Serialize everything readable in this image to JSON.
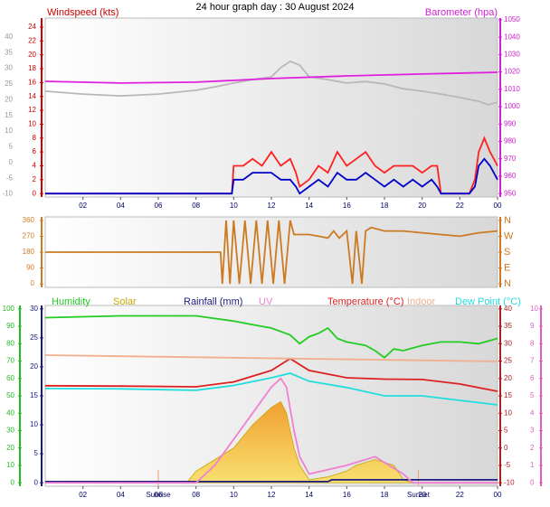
{
  "chart_data": [
    {
      "type": "line",
      "title": "24 hour graph day : 30 August 2024",
      "xlim": [
        0,
        24
      ],
      "xticks": [
        {
          "value": 2,
          "label": "02"
        },
        {
          "value": 4,
          "label": "04"
        },
        {
          "value": 6,
          "label": "06"
        },
        {
          "value": 8,
          "label": "08"
        },
        10,
        12,
        14,
        16,
        18,
        20,
        22,
        {
          "value": 24,
          "label": "00"
        }
      ],
      "axes": [
        {
          "color": "#999999",
          "lim": [
            -11,
            46
          ],
          "ticks": [
            -10,
            -5,
            0,
            5,
            10,
            15,
            20,
            25,
            30,
            35,
            40
          ]
        },
        {
          "label": "Windspeed (kts)",
          "color": "#cc0000",
          "lim": [
            -0.5,
            25.3
          ],
          "ticks": [
            0,
            2,
            4,
            6,
            8,
            10,
            12,
            14,
            16,
            18,
            20,
            22,
            24
          ]
        },
        {
          "label": "Barometer (hpa)",
          "color": "#d020d0",
          "lim": [
            948,
            1051
          ],
          "ticks": [
            950,
            960,
            970,
            980,
            990,
            1000,
            1010,
            1020,
            1030,
            1040,
            1050
          ]
        }
      ],
      "series": [
        {
          "color": "#b8b8b8",
          "axis": 0,
          "x": [
            0,
            2,
            4,
            6,
            8,
            9,
            10,
            11,
            12,
            12.5,
            13,
            13.5,
            14,
            15,
            16,
            17,
            18,
            19,
            20,
            21,
            22,
            23,
            23.5,
            24
          ],
          "values": [
            22.7,
            21.8,
            21.2,
            21.8,
            23,
            24.1,
            25.3,
            26.4,
            27.3,
            30.2,
            32.2,
            31,
            27.3,
            26.4,
            25.3,
            25.8,
            25,
            23.5,
            22.7,
            21.8,
            20.7,
            19.5,
            18.4,
            19.2
          ]
        },
        {
          "color": "#e020e0",
          "axis": 2,
          "x": [
            0,
            4,
            8,
            12,
            16,
            20,
            24
          ],
          "values": [
            1014.6,
            1013.6,
            1014.1,
            1016.2,
            1017.7,
            1018.8,
            1019.8
          ]
        },
        {
          "color": "#ff2020",
          "axis": 1,
          "x": [
            0,
            9.9,
            10,
            10.5,
            11,
            11.5,
            12,
            12.5,
            13,
            13.3,
            13.5,
            14,
            14.5,
            15,
            15.5,
            16,
            16.5,
            17,
            17.5,
            18,
            18.5,
            19,
            19.5,
            20,
            20.5,
            20.8,
            21,
            22.5,
            22.8,
            23,
            23.3,
            23.6,
            24
          ],
          "values": [
            0,
            0,
            4,
            4,
            5,
            4,
            6,
            4,
            5,
            3,
            1,
            2,
            4,
            3,
            6,
            4,
            5,
            6,
            4,
            3,
            4,
            4,
            4,
            3,
            4,
            4,
            0,
            0,
            2,
            6,
            8,
            6,
            4
          ]
        },
        {
          "color": "#0000cc",
          "axis": 1,
          "x": [
            0,
            9.9,
            10,
            10.5,
            11,
            11.5,
            12,
            12.5,
            13,
            13.3,
            13.5,
            14,
            14.5,
            15,
            15.5,
            16,
            16.5,
            17,
            17.5,
            18,
            18.5,
            19,
            19.5,
            20,
            20.5,
            20.8,
            21,
            22.5,
            22.8,
            23,
            23.3,
            23.6,
            24
          ],
          "values": [
            0,
            0,
            2,
            2,
            3,
            3,
            3,
            2,
            2,
            1,
            0,
            1,
            2,
            1,
            3,
            2,
            2,
            3,
            2,
            1,
            2,
            1,
            2,
            1,
            2,
            1,
            0,
            0,
            1,
            4,
            5,
            4,
            2
          ]
        }
      ]
    },
    {
      "type": "line",
      "xlim": [
        0,
        24
      ],
      "axes": [
        {
          "color": "#cc7a22",
          "lim": [
            -20,
            380
          ],
          "ticks": [
            0,
            90,
            180,
            270,
            360
          ]
        },
        {
          "color": "#cc7a22",
          "lim": [
            -20,
            380
          ],
          "ticks": [
            {
              "value": 0,
              "label": "N"
            },
            {
              "value": 90,
              "label": "E"
            },
            {
              "value": 180,
              "label": "S"
            },
            {
              "value": 270,
              "label": "W"
            },
            {
              "value": 360,
              "label": "N"
            }
          ]
        }
      ],
      "series": [
        {
          "color": "#cc7a22",
          "axis": 0,
          "x": [
            0,
            9.3,
            9.4,
            9.6,
            9.8,
            10,
            10.3,
            10.6,
            10.9,
            11.2,
            11.5,
            11.8,
            12.1,
            12.4,
            12.7,
            13,
            13.2,
            14,
            14.5,
            15,
            15.3,
            15.6,
            16,
            16.3,
            16.5,
            16.8,
            17,
            17.3,
            18,
            19,
            20,
            21,
            22,
            23,
            24
          ],
          "values": [
            180,
            180,
            0,
            360,
            0,
            360,
            0,
            360,
            0,
            360,
            0,
            360,
            0,
            360,
            0,
            360,
            280,
            280,
            270,
            260,
            300,
            260,
            300,
            0,
            300,
            0,
            300,
            320,
            300,
            300,
            290,
            280,
            270,
            290,
            300
          ]
        }
      ]
    },
    {
      "type": "line",
      "xlim": [
        0,
        24
      ],
      "xticks": [
        {
          "value": 2,
          "label": "02"
        },
        {
          "value": 4,
          "label": "04"
        },
        {
          "value": 6,
          "label": "06"
        },
        {
          "value": 8,
          "label": "08"
        },
        10,
        12,
        14,
        16,
        18,
        20,
        22,
        {
          "value": 24,
          "label": "00"
        }
      ],
      "annotations": [
        {
          "label": "Sunrise",
          "x": 6
        },
        {
          "label": "Sunset",
          "x": 19.8
        }
      ],
      "axes": [
        {
          "color": "#22bb22",
          "lim": [
            -2,
            102
          ],
          "ticks": [
            0,
            10,
            20,
            30,
            40,
            50,
            60,
            70,
            80,
            90,
            100
          ]
        },
        {
          "color": "#1a1a80",
          "lim": [
            -0.6,
            30.6
          ],
          "ticks": [
            0,
            5,
            10,
            15,
            20,
            25,
            30
          ]
        },
        {
          "color": "#aa2020",
          "lim": [
            -11,
            41
          ],
          "ticks": [
            -10,
            -5,
            0,
            5,
            10,
            15,
            20,
            25,
            30,
            35,
            40
          ]
        },
        {
          "color": "#e060c0",
          "lim": [
            -0.2,
            10.2
          ],
          "ticks": [
            0,
            1,
            2,
            3,
            4,
            5,
            6,
            7,
            8,
            9,
            10
          ]
        }
      ],
      "series": [
        {
          "name": "Humidity",
          "color": "#22cc22",
          "axis": 0,
          "x": [
            0,
            4,
            8,
            10,
            11,
            12,
            13,
            13.5,
            14,
            14.5,
            15,
            15.5,
            16,
            17,
            17.5,
            18,
            18.5,
            19,
            20,
            21,
            22,
            23,
            24
          ],
          "values": [
            95,
            96,
            96,
            93,
            91,
            89,
            85,
            80,
            84,
            86,
            89,
            83,
            81,
            79,
            76,
            72,
            77,
            76,
            79,
            81,
            81,
            80,
            83
          ]
        },
        {
          "name": "Solar",
          "color": "#c8a800",
          "area": true,
          "axis": 1,
          "x": [
            0,
            7.5,
            8,
            9,
            10,
            11,
            12,
            12.5,
            12.8,
            13.2,
            13.5,
            14,
            15,
            16,
            16.5,
            17.5,
            18.5,
            19,
            19.5,
            24
          ],
          "values": [
            0,
            0,
            2,
            4,
            6,
            10,
            13,
            14,
            12,
            6,
            3,
            0.5,
            1,
            2,
            3,
            4,
            3,
            0.5,
            0,
            0
          ]
        },
        {
          "name": "Rainfall (mm)",
          "color": "#1a1a80",
          "axis": 1,
          "x": [
            0,
            15,
            15.2,
            24
          ],
          "values": [
            0.2,
            0.2,
            0.5,
            0.5
          ]
        },
        {
          "name": "UV",
          "color": "#f080d0",
          "axis": 3,
          "x": [
            0,
            8,
            9,
            10,
            11,
            12,
            12.5,
            12.8,
            13.2,
            13.5,
            14,
            16,
            17.5,
            19,
            19.5,
            24
          ],
          "values": [
            0,
            0,
            1,
            2.5,
            4,
            5.5,
            6,
            5.5,
            3,
            1.5,
            0.5,
            1,
            1.5,
            0.5,
            0,
            0
          ]
        },
        {
          "name": "Temperature (°C)",
          "color": "#dd2020",
          "axis": 2,
          "x": [
            0,
            4,
            8,
            10,
            12,
            13,
            14,
            16,
            18,
            20,
            22,
            24
          ],
          "values": [
            17.9,
            17.8,
            17.6,
            19,
            22.3,
            25.7,
            22.3,
            20.2,
            19.8,
            19.7,
            18.4,
            16.3
          ]
        },
        {
          "name": "Indoor",
          "color": "#f0b090",
          "axis": 2,
          "x": [
            0,
            24
          ],
          "values": [
            26.7,
            24.9
          ]
        },
        {
          "name": "Dew Point (°C)",
          "color": "#22dddd",
          "axis": 2,
          "x": [
            0,
            4,
            8,
            10,
            12,
            13,
            14,
            16,
            18,
            20,
            22,
            24
          ],
          "values": [
            17.1,
            17,
            16.6,
            18,
            20.2,
            21.5,
            19.2,
            17.4,
            15,
            15,
            13.7,
            12.4
          ]
        }
      ]
    }
  ]
}
